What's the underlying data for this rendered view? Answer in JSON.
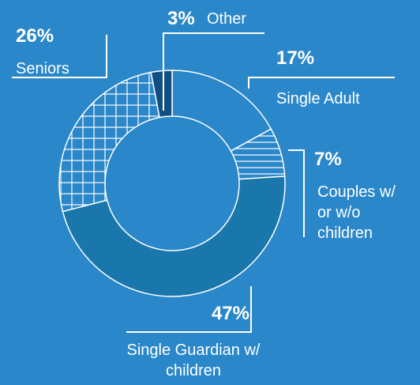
{
  "chart_data": {
    "type": "donut",
    "categories": [
      "Single Adult",
      "Couples w/ or w/o children",
      "Single Guardian w/ children",
      "Seniors",
      "Other"
    ],
    "values": [
      17,
      7,
      47,
      26,
      3
    ],
    "value_labels": [
      "17%",
      "7%",
      "47%",
      "26%",
      "3%"
    ],
    "colors": [
      "#2a87c9",
      "#2a87c9",
      "#1a77ab",
      "#2a87c9",
      "#114e82"
    ],
    "hatches": [
      "none",
      "horizontal",
      "none",
      "grid",
      "none"
    ]
  }
}
